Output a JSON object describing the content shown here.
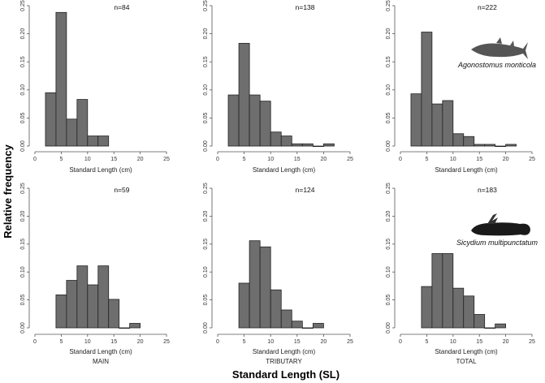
{
  "figure": {
    "ylabel": "Relative frequency",
    "xlabel": "Standard Length (SL)",
    "species": [
      "Agonostomus monticola",
      "Sicydium multipunctatum"
    ],
    "bar_color": "#6e6e6e"
  },
  "chart_data": [
    {
      "type": "bar",
      "row": "Agonostomus monticola",
      "column": "MAIN",
      "n_label": "n=84",
      "xlabel": "Standard Length (cm)",
      "group_label": "",
      "xlim": [
        0,
        25
      ],
      "ylim": [
        0,
        0.25
      ],
      "xticks": [
        0,
        5,
        10,
        15,
        20,
        25
      ],
      "yticks": [
        0,
        0.05,
        0.1,
        0.15,
        0.2,
        0.25
      ],
      "bin_width": 2,
      "bin_starts": [
        2,
        4,
        6,
        8,
        10,
        12
      ],
      "values": [
        0.095,
        0.238,
        0.048,
        0.083,
        0.018,
        0.018
      ]
    },
    {
      "type": "bar",
      "row": "Agonostomus monticola",
      "column": "TRIBUTARY",
      "n_label": "n=138",
      "xlabel": "Standard Length (cm)",
      "group_label": "",
      "xlim": [
        0,
        25
      ],
      "ylim": [
        0,
        0.25
      ],
      "xticks": [
        0,
        5,
        10,
        15,
        20,
        25
      ],
      "yticks": [
        0,
        0.05,
        0.1,
        0.15,
        0.2,
        0.25
      ],
      "bin_width": 2,
      "bin_starts": [
        2,
        4,
        6,
        8,
        10,
        12,
        14,
        16,
        18,
        20
      ],
      "values": [
        0.091,
        0.183,
        0.091,
        0.08,
        0.025,
        0.018,
        0.004,
        0.004,
        0,
        0.004
      ]
    },
    {
      "type": "bar",
      "row": "Agonostomus monticola",
      "column": "TOTAL",
      "n_label": "n=222",
      "xlabel": "Standard Length (cm)",
      "group_label": "",
      "xlim": [
        0,
        25
      ],
      "ylim": [
        0,
        0.25
      ],
      "xticks": [
        0,
        5,
        10,
        15,
        20,
        25
      ],
      "yticks": [
        0,
        0.05,
        0.1,
        0.15,
        0.2,
        0.25
      ],
      "bin_width": 2,
      "bin_starts": [
        2,
        4,
        6,
        8,
        10,
        12,
        14,
        16,
        18,
        20
      ],
      "values": [
        0.093,
        0.203,
        0.075,
        0.081,
        0.022,
        0.017,
        0.003,
        0.003,
        0,
        0.003
      ]
    },
    {
      "type": "bar",
      "row": "Sicydium multipunctatum",
      "column": "MAIN",
      "n_label": "n=59",
      "xlabel": "Standard Length (cm)",
      "group_label": "MAIN",
      "xlim": [
        0,
        25
      ],
      "ylim": [
        0,
        0.25
      ],
      "xticks": [
        0,
        5,
        10,
        15,
        20,
        25
      ],
      "yticks": [
        0,
        0.05,
        0.1,
        0.15,
        0.2,
        0.25
      ],
      "bin_width": 2,
      "bin_starts": [
        4,
        6,
        8,
        10,
        12,
        14,
        16,
        18
      ],
      "values": [
        0.059,
        0.085,
        0.111,
        0.077,
        0.111,
        0.051,
        0,
        0.008
      ]
    },
    {
      "type": "bar",
      "row": "Sicydium multipunctatum",
      "column": "TRIBUTARY",
      "n_label": "n=124",
      "xlabel": "Standard Length (cm)",
      "group_label": "TRIBUTARY",
      "xlim": [
        0,
        25
      ],
      "ylim": [
        0,
        0.25
      ],
      "xticks": [
        0,
        5,
        10,
        15,
        20,
        25
      ],
      "yticks": [
        0,
        0.05,
        0.1,
        0.15,
        0.2,
        0.25
      ],
      "bin_width": 2,
      "bin_starts": [
        4,
        6,
        8,
        10,
        12,
        14,
        16,
        18
      ],
      "values": [
        0.08,
        0.156,
        0.145,
        0.068,
        0.032,
        0.012,
        0,
        0.008
      ]
    },
    {
      "type": "bar",
      "row": "Sicydium multipunctatum",
      "column": "TOTAL",
      "n_label": "n=183",
      "xlabel": "Standard Length (cm)",
      "group_label": "TOTAL",
      "xlim": [
        0,
        25
      ],
      "ylim": [
        0,
        0.25
      ],
      "xticks": [
        0,
        5,
        10,
        15,
        20,
        25
      ],
      "yticks": [
        0,
        0.05,
        0.1,
        0.15,
        0.2,
        0.25
      ],
      "bin_width": 2,
      "bin_starts": [
        4,
        6,
        8,
        10,
        12,
        14,
        16,
        18
      ],
      "values": [
        0.074,
        0.133,
        0.133,
        0.071,
        0.057,
        0.024,
        0,
        0.007
      ]
    }
  ]
}
